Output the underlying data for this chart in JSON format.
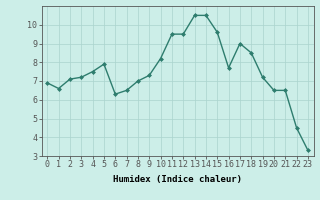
{
  "x": [
    0,
    1,
    2,
    3,
    4,
    5,
    6,
    7,
    8,
    9,
    10,
    11,
    12,
    13,
    14,
    15,
    16,
    17,
    18,
    19,
    20,
    21,
    22,
    23
  ],
  "y": [
    6.9,
    6.6,
    7.1,
    7.2,
    7.5,
    7.9,
    6.3,
    6.5,
    7.0,
    7.3,
    8.2,
    9.5,
    9.5,
    10.5,
    10.5,
    9.6,
    7.7,
    9.0,
    8.5,
    7.2,
    6.5,
    6.5,
    4.5,
    3.3
  ],
  "line_color": "#2e7d6e",
  "marker": "D",
  "marker_size": 2.0,
  "line_width": 1.0,
  "bg_color": "#cceee8",
  "grid_color": "#aad4ce",
  "xlabel": "Humidex (Indice chaleur)",
  "xlabel_fontsize": 6.5,
  "tick_fontsize": 6,
  "ylim": [
    3,
    11
  ],
  "xlim": [
    -0.5,
    23.5
  ],
  "yticks": [
    3,
    4,
    5,
    6,
    7,
    8,
    9,
    10
  ],
  "xticks": [
    0,
    1,
    2,
    3,
    4,
    5,
    6,
    7,
    8,
    9,
    10,
    11,
    12,
    13,
    14,
    15,
    16,
    17,
    18,
    19,
    20,
    21,
    22,
    23
  ],
  "spine_color": "#555555",
  "grid_linewidth": 0.5
}
